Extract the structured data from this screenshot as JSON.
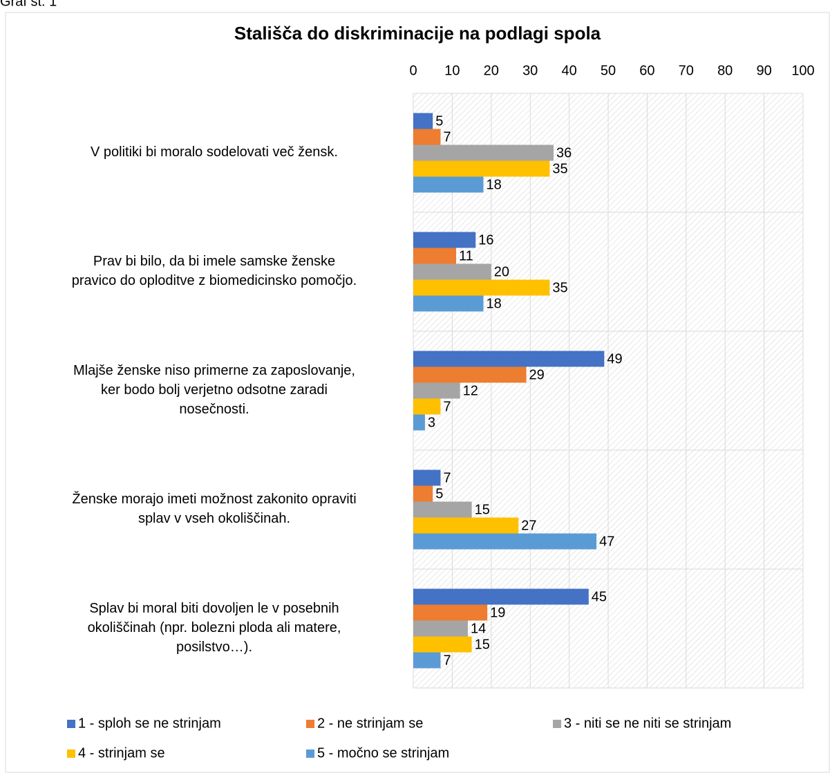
{
  "caption": "Graf št. 1",
  "chart_data": {
    "type": "hbar",
    "title": "Stališča do diskriminacije na podlagi spola",
    "categories": [
      "V politiki bi moralo sodelovati več žensk.",
      "Prav bi bilo, da bi imele samske ženske\npravico do oploditve z biomedicinsko pomočjo.",
      "Mlajše ženske niso primerne za zaposlovanje,\nker bodo bolj verjetno odsotne zaradi\nnosečnosti.",
      "Ženske morajo imeti možnost zakonito opraviti\nsplav v vseh okoliščinah.",
      "Splav bi moral biti dovoljen le v posebnih\nokoliščinah (npr. bolezni ploda ali matere,\nposilstvo…)."
    ],
    "series": [
      {
        "name": "1 - sploh se ne strinjam",
        "color": "#4472c4",
        "values": [
          5,
          16,
          49,
          7,
          45
        ]
      },
      {
        "name": "2 - ne strinjam se",
        "color": "#ed7d31",
        "values": [
          7,
          11,
          29,
          5,
          19
        ]
      },
      {
        "name": "3 - niti se ne niti se strinjam",
        "color": "#a5a5a5",
        "values": [
          36,
          20,
          12,
          15,
          14
        ]
      },
      {
        "name": "4 - strinjam se",
        "color": "#ffc000",
        "values": [
          35,
          35,
          7,
          27,
          15
        ]
      },
      {
        "name": "5 - močno se strinjam",
        "color": "#5b9bd5",
        "values": [
          18,
          18,
          3,
          47,
          7
        ]
      }
    ],
    "xlim": [
      0,
      100
    ],
    "xticks": [
      0,
      10,
      20,
      30,
      40,
      50,
      60,
      70,
      80,
      90,
      100
    ],
    "grid": true,
    "legend": "bottom"
  }
}
